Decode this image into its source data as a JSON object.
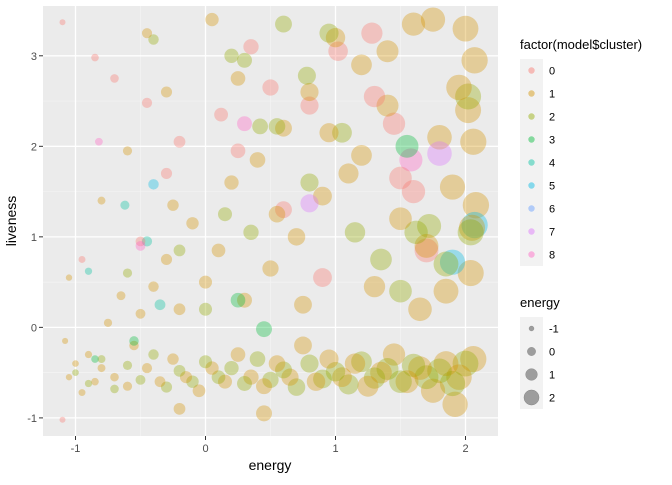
{
  "chart_data": {
    "type": "scatter",
    "xlabel": "energy",
    "ylabel": "liveness",
    "xlim": [
      -1.25,
      2.25
    ],
    "ylim": [
      -1.2,
      3.55
    ],
    "x_ticks": [
      -1,
      0,
      1,
      2
    ],
    "y_ticks": [
      -1,
      0,
      1,
      2,
      3
    ],
    "x_tick_labels": [
      "-1",
      "0",
      "1",
      "2"
    ],
    "y_tick_labels": [
      "-1",
      "0",
      "1",
      "2",
      "3"
    ],
    "grid": true,
    "point_alpha": 0.35,
    "point_size_mapped_to": "energy",
    "legend_position": "right",
    "color_legend": {
      "title": "factor(model$cluster)",
      "entries": [
        {
          "label": "0",
          "color": "#F8766D"
        },
        {
          "label": "1",
          "color": "#D39200"
        },
        {
          "label": "2",
          "color": "#93AA00"
        },
        {
          "label": "3",
          "color": "#00BA38"
        },
        {
          "label": "4",
          "color": "#00C19F"
        },
        {
          "label": "5",
          "color": "#00B9E3"
        },
        {
          "label": "6",
          "color": "#619CFF"
        },
        {
          "label": "7",
          "color": "#DB72FB"
        },
        {
          "label": "8",
          "color": "#FF61C3"
        }
      ]
    },
    "size_legend": {
      "title": "energy",
      "entries": [
        {
          "label": "-1",
          "value": -1
        },
        {
          "label": "0",
          "value": 0
        },
        {
          "label": "1",
          "value": 1
        },
        {
          "label": "2",
          "value": 2
        }
      ]
    },
    "series": [
      {
        "cluster": "0",
        "color": "#F8766D",
        "points": [
          [
            -1.1,
            3.37
          ],
          [
            -0.85,
            2.98
          ],
          [
            -0.7,
            2.75
          ],
          [
            -0.45,
            2.48
          ],
          [
            -0.2,
            2.05
          ],
          [
            0.12,
            2.35
          ],
          [
            0.35,
            3.1
          ],
          [
            0.8,
            2.45
          ],
          [
            1.28,
            3.25
          ],
          [
            1.3,
            2.55
          ],
          [
            1.5,
            1.65
          ],
          [
            1.6,
            1.5
          ],
          [
            1.45,
            2.25
          ],
          [
            0.6,
            1.3
          ],
          [
            -0.5,
            0.95
          ],
          [
            -0.95,
            0.75
          ],
          [
            0.9,
            0.55
          ],
          [
            1.7,
            0.85
          ],
          [
            -1.1,
            -1.02
          ],
          [
            0.25,
            1.95
          ],
          [
            1.02,
            3.05
          ],
          [
            -0.3,
            1.7
          ],
          [
            0.5,
            2.65
          ]
        ]
      },
      {
        "cluster": "1",
        "color": "#D39200",
        "points": [
          [
            -1.05,
            -0.55
          ],
          [
            -1.0,
            -0.4
          ],
          [
            -0.95,
            -0.72
          ],
          [
            -0.9,
            -0.3
          ],
          [
            -0.85,
            -0.6
          ],
          [
            -0.8,
            -0.45
          ],
          [
            -0.75,
            0.05
          ],
          [
            -0.7,
            -0.55
          ],
          [
            -0.65,
            0.35
          ],
          [
            -0.6,
            -0.65
          ],
          [
            -0.55,
            -0.2
          ],
          [
            -0.5,
            0.15
          ],
          [
            -0.45,
            -0.45
          ],
          [
            -0.4,
            0.45
          ],
          [
            -0.35,
            -0.6
          ],
          [
            -0.3,
            0.75
          ],
          [
            -0.25,
            -0.35
          ],
          [
            -0.2,
            0.2
          ],
          [
            -0.15,
            -0.55
          ],
          [
            -0.1,
            1.15
          ],
          [
            -0.05,
            -0.7
          ],
          [
            0.0,
            0.5
          ],
          [
            0.05,
            -0.45
          ],
          [
            0.1,
            0.85
          ],
          [
            0.15,
            -0.6
          ],
          [
            0.2,
            1.6
          ],
          [
            0.25,
            -0.3
          ],
          [
            0.3,
            0.3
          ],
          [
            0.35,
            -0.55
          ],
          [
            0.4,
            1.85
          ],
          [
            0.45,
            -0.65
          ],
          [
            0.5,
            0.65
          ],
          [
            0.55,
            -0.4
          ],
          [
            0.6,
            2.2
          ],
          [
            0.65,
            -0.55
          ],
          [
            0.7,
            1.0
          ],
          [
            0.75,
            -0.2
          ],
          [
            0.8,
            2.6
          ],
          [
            0.85,
            -0.6
          ],
          [
            0.9,
            1.45
          ],
          [
            0.95,
            -0.35
          ],
          [
            1.0,
            3.2
          ],
          [
            1.05,
            -0.55
          ],
          [
            1.1,
            1.7
          ],
          [
            1.15,
            -0.4
          ],
          [
            1.2,
            2.9
          ],
          [
            1.25,
            -0.65
          ],
          [
            1.3,
            0.45
          ],
          [
            1.35,
            -0.5
          ],
          [
            1.4,
            2.45
          ],
          [
            1.45,
            -0.3
          ],
          [
            1.5,
            1.2
          ],
          [
            1.55,
            -0.6
          ],
          [
            1.6,
            3.35
          ],
          [
            1.65,
            -0.45
          ],
          [
            1.7,
            0.9
          ],
          [
            1.75,
            -0.7
          ],
          [
            1.8,
            2.1
          ],
          [
            1.85,
            -0.4
          ],
          [
            1.9,
            1.55
          ],
          [
            1.95,
            -0.55
          ],
          [
            2.0,
            3.3
          ],
          [
            2.02,
            2.4
          ],
          [
            2.04,
            0.6
          ],
          [
            2.06,
            -0.35
          ],
          [
            2.05,
            1.1
          ],
          [
            2.07,
            2.95
          ],
          [
            -0.6,
            1.95
          ],
          [
            -0.3,
            2.6
          ],
          [
            0.05,
            3.4
          ],
          [
            -0.45,
            3.25
          ],
          [
            0.25,
            2.75
          ],
          [
            0.95,
            2.15
          ],
          [
            1.4,
            3.05
          ],
          [
            1.75,
            3.4
          ],
          [
            -0.8,
            1.4
          ],
          [
            -0.25,
            1.35
          ],
          [
            0.55,
            1.25
          ],
          [
            1.2,
            1.9
          ],
          [
            1.95,
            2.65
          ],
          [
            -1.05,
            0.55
          ],
          [
            -1.08,
            -0.15
          ],
          [
            1.65,
            0.2
          ],
          [
            0.75,
            0.25
          ],
          [
            1.85,
            0.4
          ],
          [
            2.06,
            2.05
          ],
          [
            2.08,
            1.35
          ],
          [
            1.92,
            -0.85
          ],
          [
            0.45,
            -0.95
          ],
          [
            -0.2,
            -0.9
          ]
        ]
      },
      {
        "cluster": "2",
        "color": "#93AA00",
        "points": [
          [
            -1.0,
            -0.5
          ],
          [
            -0.9,
            -0.62
          ],
          [
            -0.8,
            -0.35
          ],
          [
            -0.7,
            -0.68
          ],
          [
            -0.6,
            -0.42
          ],
          [
            -0.5,
            -0.58
          ],
          [
            -0.4,
            -0.3
          ],
          [
            -0.3,
            -0.66
          ],
          [
            -0.2,
            -0.48
          ],
          [
            -0.1,
            -0.6
          ],
          [
            0.0,
            -0.38
          ],
          [
            0.1,
            -0.55
          ],
          [
            0.2,
            -0.45
          ],
          [
            0.3,
            -0.62
          ],
          [
            0.4,
            -0.35
          ],
          [
            0.5,
            -0.58
          ],
          [
            0.6,
            -0.47
          ],
          [
            0.7,
            -0.66
          ],
          [
            0.8,
            -0.4
          ],
          [
            0.9,
            -0.57
          ],
          [
            1.0,
            -0.49
          ],
          [
            1.1,
            -0.63
          ],
          [
            1.2,
            -0.38
          ],
          [
            1.3,
            -0.56
          ],
          [
            1.4,
            -0.46
          ],
          [
            1.5,
            -0.6
          ],
          [
            1.6,
            -0.42
          ],
          [
            1.7,
            -0.55
          ],
          [
            1.8,
            -0.48
          ],
          [
            1.9,
            -0.62
          ],
          [
            2.0,
            -0.4
          ],
          [
            0.2,
            3.0
          ],
          [
            0.3,
            2.95
          ],
          [
            0.42,
            2.22
          ],
          [
            0.55,
            2.22
          ],
          [
            0.78,
            2.78
          ],
          [
            0.8,
            1.6
          ],
          [
            1.05,
            2.15
          ],
          [
            1.15,
            1.05
          ],
          [
            1.62,
            1.05
          ],
          [
            1.72,
            1.12
          ],
          [
            2.02,
            2.55
          ],
          [
            2.04,
            1.05
          ],
          [
            -0.4,
            3.18
          ],
          [
            0.15,
            1.25
          ],
          [
            0.35,
            1.05
          ],
          [
            0.0,
            0.2
          ],
          [
            -0.6,
            0.6
          ],
          [
            1.5,
            0.4
          ],
          [
            1.85,
            0.7
          ],
          [
            0.6,
            3.35
          ],
          [
            0.95,
            3.25
          ],
          [
            1.35,
            0.75
          ],
          [
            -0.2,
            0.85
          ]
        ]
      },
      {
        "cluster": "3",
        "color": "#00BA38",
        "points": [
          [
            0.45,
            -0.02
          ],
          [
            -0.85,
            -0.35
          ],
          [
            1.55,
            2.0
          ],
          [
            0.25,
            0.3
          ],
          [
            -0.55,
            -0.15
          ]
        ]
      },
      {
        "cluster": "4",
        "color": "#00C19F",
        "points": [
          [
            -0.62,
            1.35
          ],
          [
            -0.45,
            0.95
          ],
          [
            -0.9,
            0.62
          ],
          [
            -0.35,
            0.25
          ]
        ]
      },
      {
        "cluster": "5",
        "color": "#00B9E3",
        "points": [
          [
            2.07,
            1.13
          ],
          [
            1.9,
            0.72
          ],
          [
            -0.4,
            1.58
          ]
        ]
      },
      {
        "cluster": "6",
        "color": "#619CFF",
        "points": []
      },
      {
        "cluster": "7",
        "color": "#DB72FB",
        "points": [
          [
            1.8,
            1.92
          ],
          [
            0.8,
            1.37
          ]
        ]
      },
      {
        "cluster": "8",
        "color": "#FF61C3",
        "points": [
          [
            -0.82,
            2.05
          ],
          [
            -0.5,
            0.9
          ],
          [
            1.58,
            1.85
          ],
          [
            0.3,
            2.25
          ]
        ]
      }
    ]
  }
}
